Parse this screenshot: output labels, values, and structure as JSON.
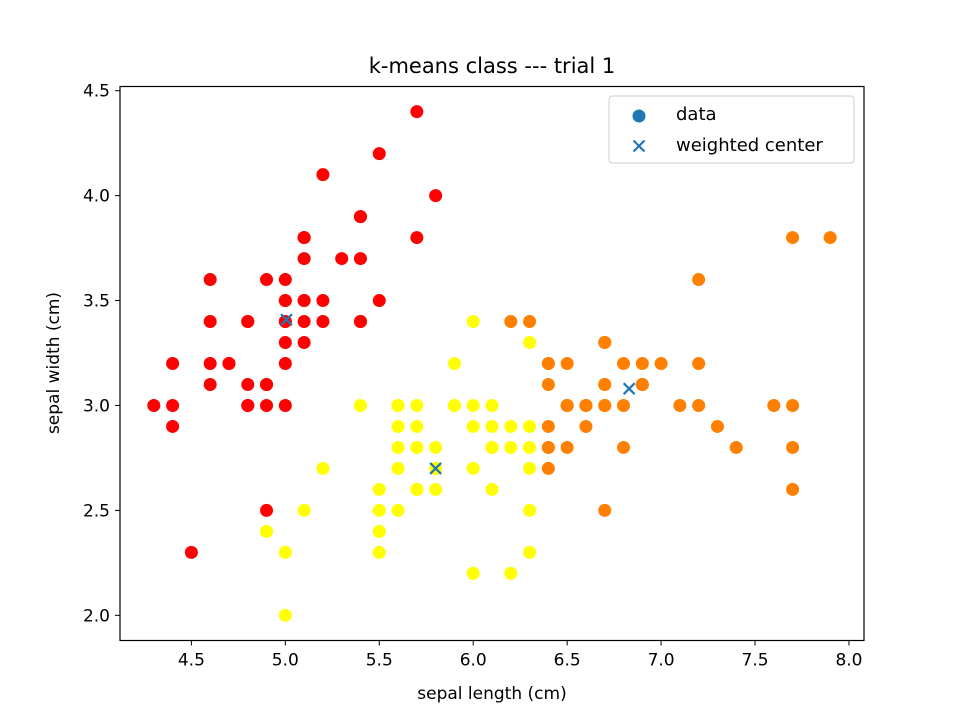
{
  "chart_data": {
    "type": "scatter",
    "title": "k-means class --- trial 1",
    "xlabel": "sepal length (cm)",
    "ylabel": "sepal width (cm)",
    "xlim": [
      4.12,
      8.08
    ],
    "ylim": [
      1.88,
      4.52
    ],
    "xticks": [
      "4.5",
      "5.0",
      "5.5",
      "6.0",
      "6.5",
      "7.0",
      "7.5",
      "8.0"
    ],
    "yticks": [
      "2.0",
      "2.5",
      "3.0",
      "3.5",
      "4.0",
      "4.5"
    ],
    "grid": false,
    "legend": {
      "position": "top-right",
      "entries": [
        {
          "label": "data",
          "marker": "circle",
          "color": "#1f77b4"
        },
        {
          "label": "weighted center",
          "marker": "x",
          "color": "#1f77b4"
        }
      ]
    },
    "colors": {
      "cluster_1": "#ff0000",
      "cluster_2": "#ffff00",
      "cluster_3": "#ff8000",
      "center": "#1f77b4"
    },
    "series": [
      {
        "cluster": 1,
        "color": "#ff0000",
        "points": [
          [
            5.1,
            3.5
          ],
          [
            4.9,
            3.0
          ],
          [
            4.7,
            3.2
          ],
          [
            4.6,
            3.1
          ],
          [
            5.0,
            3.6
          ],
          [
            5.4,
            3.9
          ],
          [
            4.6,
            3.4
          ],
          [
            5.0,
            3.4
          ],
          [
            4.4,
            2.9
          ],
          [
            4.9,
            3.1
          ],
          [
            5.4,
            3.7
          ],
          [
            4.8,
            3.4
          ],
          [
            4.8,
            3.0
          ],
          [
            4.3,
            3.0
          ],
          [
            5.8,
            4.0
          ],
          [
            5.7,
            4.4
          ],
          [
            5.4,
            3.9
          ],
          [
            5.1,
            3.5
          ],
          [
            5.7,
            3.8
          ],
          [
            5.1,
            3.8
          ],
          [
            5.4,
            3.4
          ],
          [
            5.1,
            3.7
          ],
          [
            4.6,
            3.6
          ],
          [
            5.1,
            3.3
          ],
          [
            4.8,
            3.4
          ],
          [
            5.0,
            3.0
          ],
          [
            5.0,
            3.4
          ],
          [
            5.2,
            3.5
          ],
          [
            5.2,
            3.4
          ],
          [
            4.7,
            3.2
          ],
          [
            4.8,
            3.1
          ],
          [
            5.4,
            3.4
          ],
          [
            5.2,
            4.1
          ],
          [
            5.5,
            4.2
          ],
          [
            4.9,
            3.1
          ],
          [
            5.0,
            3.2
          ],
          [
            5.5,
            3.5
          ],
          [
            4.9,
            3.6
          ],
          [
            4.4,
            3.0
          ],
          [
            5.1,
            3.4
          ],
          [
            5.0,
            3.5
          ],
          [
            4.5,
            2.3
          ],
          [
            4.4,
            3.2
          ],
          [
            5.0,
            3.5
          ],
          [
            5.1,
            3.8
          ],
          [
            4.8,
            3.0
          ],
          [
            5.1,
            3.8
          ],
          [
            4.6,
            3.2
          ],
          [
            5.3,
            3.7
          ],
          [
            5.0,
            3.3
          ],
          [
            4.9,
            2.5
          ]
        ]
      },
      {
        "cluster": 2,
        "color": "#ffff00",
        "points": [
          [
            5.5,
            2.3
          ],
          [
            5.7,
            2.8
          ],
          [
            6.3,
            3.3
          ],
          [
            4.9,
            2.4
          ],
          [
            5.2,
            2.7
          ],
          [
            5.0,
            2.0
          ],
          [
            5.9,
            3.0
          ],
          [
            6.0,
            2.2
          ],
          [
            6.1,
            2.9
          ],
          [
            5.6,
            2.9
          ],
          [
            5.6,
            3.0
          ],
          [
            5.8,
            2.7
          ],
          [
            6.2,
            2.2
          ],
          [
            5.6,
            2.5
          ],
          [
            5.9,
            3.2
          ],
          [
            6.1,
            2.8
          ],
          [
            6.3,
            2.5
          ],
          [
            6.1,
            2.8
          ],
          [
            5.7,
            2.6
          ],
          [
            6.0,
            2.9
          ],
          [
            5.7,
            2.6
          ],
          [
            5.5,
            2.4
          ],
          [
            5.5,
            2.4
          ],
          [
            5.8,
            2.7
          ],
          [
            6.0,
            2.7
          ],
          [
            5.4,
            3.0
          ],
          [
            6.0,
            3.4
          ],
          [
            6.3,
            2.3
          ],
          [
            5.6,
            3.0
          ],
          [
            5.5,
            2.5
          ],
          [
            5.5,
            2.6
          ],
          [
            6.1,
            3.0
          ],
          [
            5.8,
            2.6
          ],
          [
            5.0,
            2.3
          ],
          [
            5.6,
            2.7
          ],
          [
            5.7,
            3.0
          ],
          [
            5.7,
            2.9
          ],
          [
            6.2,
            2.9
          ],
          [
            5.1,
            2.5
          ],
          [
            5.7,
            2.8
          ],
          [
            5.8,
            2.8
          ],
          [
            6.3,
            2.7
          ],
          [
            6.2,
            2.8
          ],
          [
            6.1,
            2.6
          ],
          [
            6.3,
            2.8
          ],
          [
            6.0,
            3.0
          ],
          [
            5.9,
            3.0
          ],
          [
            6.3,
            2.9
          ],
          [
            5.6,
            2.8
          ]
        ]
      },
      {
        "cluster": 3,
        "color": "#ff8000",
        "points": [
          [
            7.0,
            3.2
          ],
          [
            6.4,
            3.2
          ],
          [
            6.9,
            3.1
          ],
          [
            6.5,
            2.8
          ],
          [
            6.6,
            2.9
          ],
          [
            6.7,
            3.1
          ],
          [
            6.4,
            2.9
          ],
          [
            6.6,
            3.0
          ],
          [
            6.8,
            2.8
          ],
          [
            6.7,
            3.0
          ],
          [
            6.7,
            3.1
          ],
          [
            6.9,
            3.1
          ],
          [
            6.8,
            3.2
          ],
          [
            6.7,
            3.3
          ],
          [
            6.7,
            3.0
          ],
          [
            6.5,
            3.0
          ],
          [
            6.2,
            3.4
          ],
          [
            7.1,
            3.0
          ],
          [
            6.5,
            3.0
          ],
          [
            7.6,
            3.0
          ],
          [
            7.3,
            2.9
          ],
          [
            6.7,
            2.5
          ],
          [
            7.2,
            3.6
          ],
          [
            6.4,
            2.7
          ],
          [
            6.8,
            3.0
          ],
          [
            6.5,
            3.2
          ],
          [
            7.7,
            3.8
          ],
          [
            7.7,
            2.6
          ],
          [
            6.9,
            3.2
          ],
          [
            7.7,
            2.8
          ],
          [
            6.7,
            3.3
          ],
          [
            7.2,
            3.2
          ],
          [
            6.4,
            2.8
          ],
          [
            7.2,
            3.0
          ],
          [
            7.4,
            2.8
          ],
          [
            7.9,
            3.8
          ],
          [
            6.4,
            2.8
          ],
          [
            7.7,
            3.0
          ],
          [
            6.4,
            3.1
          ],
          [
            6.9,
            3.1
          ],
          [
            6.3,
            3.4
          ],
          [
            6.6,
            3.0
          ],
          [
            6.5,
            3.0
          ],
          [
            6.4,
            3.2
          ]
        ]
      }
    ],
    "centers": [
      [
        5.006,
        3.409
      ],
      [
        5.8,
        2.7
      ],
      [
        6.83,
        3.08
      ]
    ]
  }
}
